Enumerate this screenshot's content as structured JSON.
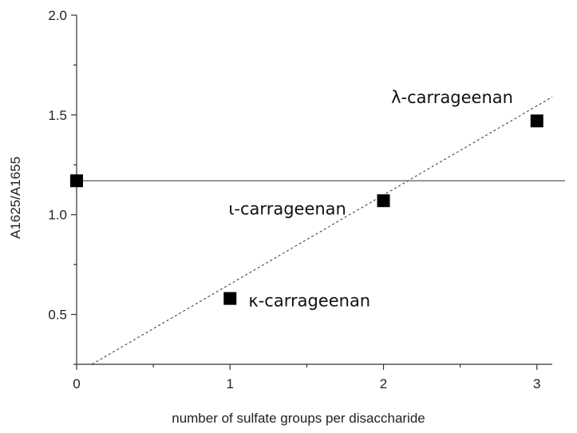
{
  "chart_data": {
    "type": "scatter",
    "title": "",
    "xlabel": "number of sulfate groups per disaccharide",
    "ylabel": "A1625/A1655",
    "xlim": [
      0,
      3.1
    ],
    "ylim": [
      0.25,
      2.0
    ],
    "x_major_ticks": [
      0,
      1,
      2,
      3
    ],
    "y_major_ticks": [
      0.5,
      1.0,
      1.5,
      2.0
    ],
    "y_tick_labels": [
      "0.5",
      "1.0",
      "1.5",
      "2.0"
    ],
    "x_tick_labels": [
      "0",
      "1",
      "2",
      "3"
    ],
    "series": [
      {
        "values": [
          {
            "x": 0,
            "y": 1.17
          },
          {
            "x": 1,
            "y": 0.58
          },
          {
            "x": 2,
            "y": 1.07
          },
          {
            "x": 3,
            "y": 1.47
          }
        ]
      }
    ],
    "reference_line": {
      "y": 1.17
    },
    "fit_line": {
      "from": [
        0.1,
        0.25
      ],
      "to": [
        3.1,
        1.59
      ],
      "style": "dashed"
    },
    "annotations": [
      {
        "text": "κ-carrageenan",
        "x": 1.12,
        "y": 0.54
      },
      {
        "text": "ι-carrageenan",
        "x": 0.99,
        "y": 1.0
      },
      {
        "text": "λ-carrageenan",
        "x": 2.05,
        "y": 1.56
      }
    ],
    "grid": false,
    "legend": "none",
    "colors": {
      "marker": "#000000",
      "line": "#333333"
    }
  }
}
